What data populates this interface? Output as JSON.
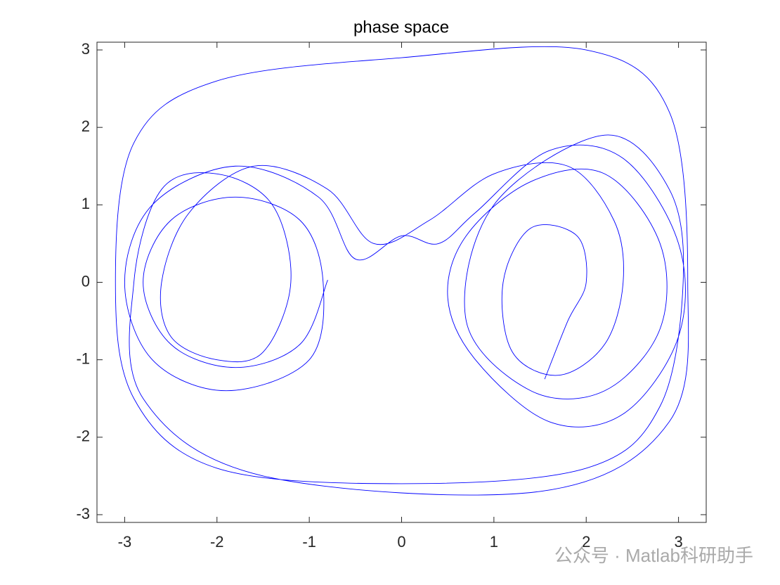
{
  "chart_data": {
    "type": "line",
    "title": "phase space",
    "color": "#0000ff",
    "x": [
      -0.8,
      -1.1,
      -1.8,
      -2.5,
      -2.8,
      -2.5,
      -1.8,
      -1.1,
      -0.85,
      -1.0,
      -1.9,
      -2.7,
      -3.0,
      -2.7,
      -1.8,
      -0.9,
      -0.5,
      0,
      0.4,
      0.8,
      1.6,
      2.4,
      3.0,
      3.0,
      2.4,
      1.6,
      0.8,
      0.5,
      0.7,
      1.4,
      2.2,
      2.8,
      2.8,
      2.2,
      1.4,
      0.7,
      1.0,
      2.2,
      2.9,
      3.05,
      2.8,
      2.0,
      0,
      -2,
      -2.9,
      -3.1,
      -2.9,
      -2,
      0,
      2,
      2.9,
      3.1,
      2.9,
      1.5,
      -1.5,
      -2.8,
      -2.9,
      -2.6,
      -2.0,
      -1.4,
      -1.2,
      -1.5,
      -2.0,
      -2.5,
      -2.6,
      -2.3,
      -1.6,
      -0.8,
      -0.3,
      0.3,
      1.0,
      1.8,
      2.3,
      2.4,
      2.2,
      1.7,
      1.2,
      1.1,
      1.4,
      1.9,
      2.0,
      1.8,
      1.55
    ],
    "values": [
      0.03,
      -0.8,
      -1.1,
      -0.8,
      0,
      0.8,
      1.1,
      0.8,
      0,
      -1.0,
      -1.4,
      -1.0,
      0,
      1.0,
      1.5,
      1.1,
      0.3,
      0.6,
      0.5,
      0.9,
      1.7,
      1.6,
      0.5,
      -0.7,
      -1.7,
      -1.8,
      -1.0,
      -0.2,
      0.6,
      1.3,
      1.4,
      0.5,
      -0.6,
      -1.4,
      -1.4,
      -0.5,
      1.0,
      1.9,
      1.2,
      0,
      -1.6,
      -2.4,
      -2.6,
      -2.4,
      -1.5,
      0,
      1.8,
      2.6,
      2.9,
      3.0,
      2.2,
      0,
      -1.8,
      -2.7,
      -2.5,
      -1.5,
      0,
      1.2,
      1.4,
      1.0,
      0,
      -0.9,
      -1.0,
      -0.7,
      0,
      0.9,
      1.5,
      1.2,
      0.5,
      0.8,
      1.4,
      1.5,
      0.8,
      0,
      -0.8,
      -1.2,
      -0.9,
      0,
      0.7,
      0.6,
      0,
      -0.5,
      -1.25
    ],
    "xlim": [
      -3.3,
      3.3
    ],
    "ylim": [
      -3.1,
      3.1
    ],
    "xticks": [
      -3,
      -2,
      -1,
      0,
      1,
      2,
      3
    ],
    "yticks": [
      -3,
      -2,
      -1,
      0,
      1,
      2,
      3
    ]
  },
  "watermark": "公众号 · Matlab科研助手"
}
